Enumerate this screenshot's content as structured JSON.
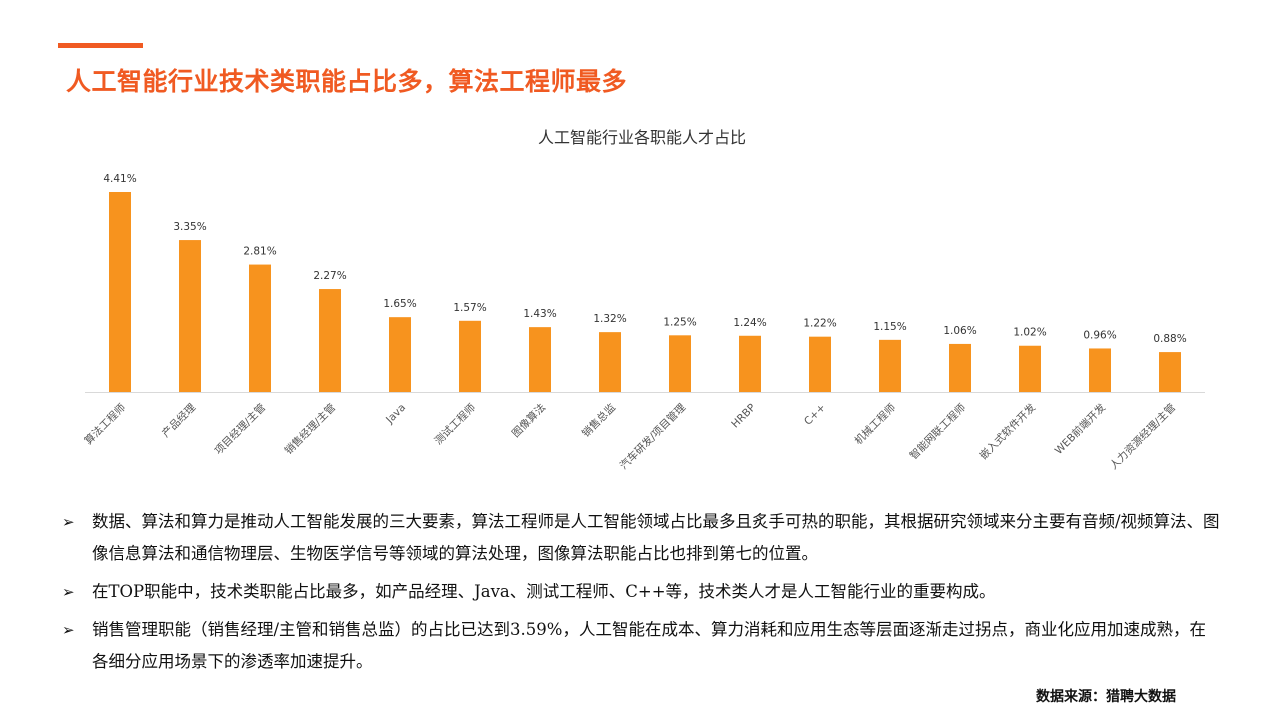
{
  "page": {
    "title": "人工智能行业技术类职能占比多，算法工程师最多",
    "source": "数据来源：猎聘大数据"
  },
  "chart_data": {
    "type": "bar",
    "title": "人工智能行业各职能人才占比",
    "categories": [
      "算法工程师",
      "产品经理",
      "项目经理/主管",
      "销售经理/主管",
      "Java",
      "测试工程师",
      "图像算法",
      "销售总监",
      "汽车研发/项目管理",
      "HRBP",
      "C++",
      "机械工程师",
      "智能网联工程师",
      "嵌入式软件开发",
      "WEB前端开发",
      "人力资源经理/主管"
    ],
    "values": [
      4.41,
      3.35,
      2.81,
      2.27,
      1.65,
      1.57,
      1.43,
      1.32,
      1.25,
      1.24,
      1.22,
      1.15,
      1.06,
      1.02,
      0.96,
      0.88
    ],
    "value_labels": [
      "4.41%",
      "3.35%",
      "2.81%",
      "2.27%",
      "1.65%",
      "1.57%",
      "1.43%",
      "1.32%",
      "1.25%",
      "1.24%",
      "1.22%",
      "1.15%",
      "1.06%",
      "1.02%",
      "0.96%",
      "0.88%"
    ],
    "unit": "%",
    "ylim": [
      0,
      4.41
    ],
    "bar_color": "#f7931e",
    "grid": false,
    "legend": "none",
    "tick_label_rotation": "-45deg"
  },
  "bullets": [
    "数据、算法和算力是推动人工智能发展的三大要素，算法工程师是人工智能领域占比最多且炙手可热的职能，其根据研究领域来分主要有音频/视频算法、图像信息算法和通信物理层、生物医学信号等领域的算法处理，图像算法职能占比也排到第七的位置。",
    "在TOP职能中，技术类职能占比最多，如产品经理、Java、测试工程师、C++等，技术类人才是人工智能行业的重要构成。",
    "销售管理职能（销售经理/主管和销售总监）的占比已达到3.59%，人工智能在成本、算力消耗和应用生态等层面逐渐走过拐点，商业化应用加速成熟，在各细分应用场景下的渗透率加速提升。"
  ],
  "bullet_marker": "➢",
  "colors": {
    "accent": "#f05a22",
    "bar": "#f7931e"
  }
}
